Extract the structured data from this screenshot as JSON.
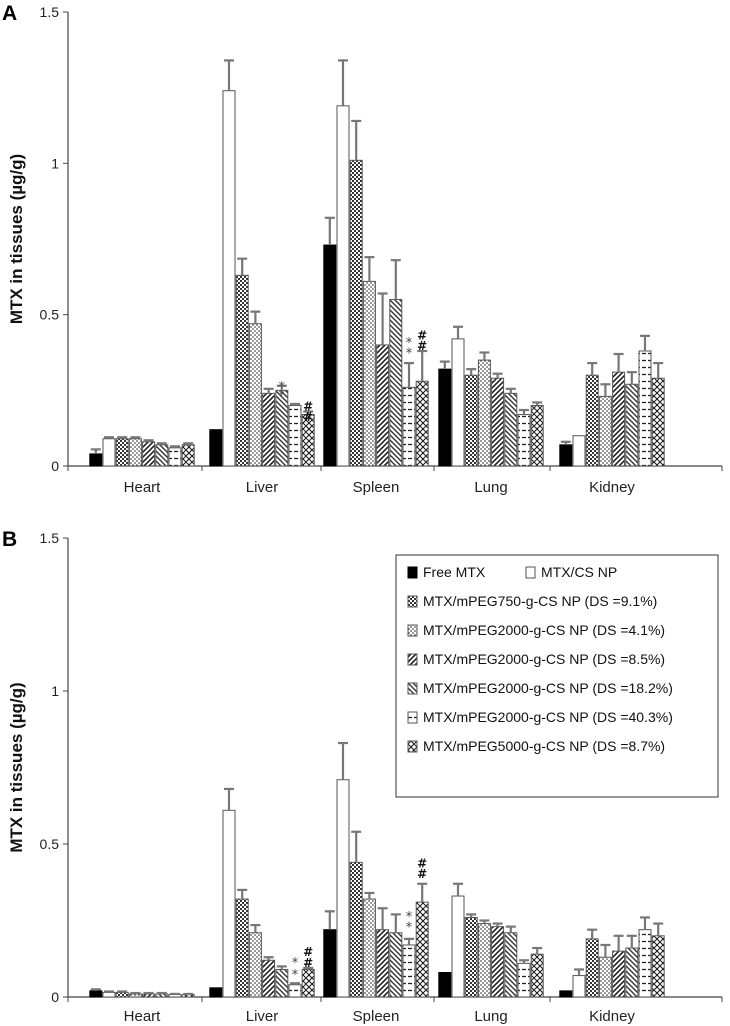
{
  "chart_data": [
    {
      "panel": "A",
      "type": "bar",
      "ylabel": "MTX in tissues (µg/g)",
      "ylim": [
        0,
        1.5
      ],
      "yticks": [
        "0",
        "0.5",
        "1",
        "1.5"
      ],
      "categories": [
        "Heart",
        "Liver",
        "Spleen",
        "Lung",
        "Kidney"
      ],
      "series": [
        {
          "name": "Free MTX",
          "values": [
            0.04,
            0.12,
            0.73,
            0.32,
            0.07
          ],
          "errors": [
            0.015,
            0.0,
            0.09,
            0.025,
            0.01
          ]
        },
        {
          "name": "MTX/CS NP",
          "values": [
            0.09,
            1.24,
            1.19,
            0.42,
            0.1
          ],
          "errors": [
            0.005,
            0.1,
            0.15,
            0.04,
            0.0
          ]
        },
        {
          "name": "MTX/mPEG750-g-CS NP (DS =9.1%)",
          "values": [
            0.09,
            0.63,
            1.01,
            0.3,
            0.3
          ],
          "errors": [
            0.005,
            0.055,
            0.13,
            0.02,
            0.04
          ]
        },
        {
          "name": "MTX/mPEG2000-g-CS NP (DS =4.1%)",
          "values": [
            0.09,
            0.47,
            0.61,
            0.35,
            0.23
          ],
          "errors": [
            0.005,
            0.04,
            0.08,
            0.025,
            0.04
          ]
        },
        {
          "name": "MTX/mPEG2000-g-CS NP (DS =8.5%)",
          "values": [
            0.08,
            0.24,
            0.4,
            0.29,
            0.31
          ],
          "errors": [
            0.005,
            0.015,
            0.17,
            0.015,
            0.06
          ]
        },
        {
          "name": "MTX/mPEG2000-g-CS NP (DS =18.2%)",
          "values": [
            0.07,
            0.25,
            0.55,
            0.24,
            0.27
          ],
          "errors": [
            0.005,
            0.015,
            0.13,
            0.015,
            0.04
          ]
        },
        {
          "name": "MTX/mPEG2000-g-CS NP (DS =40.3%)",
          "values": [
            0.06,
            0.2,
            0.26,
            0.17,
            0.38
          ],
          "errors": [
            0.005,
            0.005,
            0.08,
            0.015,
            0.05
          ]
        },
        {
          "name": "MTX/mPEG5000-g-CS NP (DS =8.7%)",
          "values": [
            0.07,
            0.17,
            0.28,
            0.2,
            0.29
          ],
          "errors": [
            0.005,
            0.01,
            0.1,
            0.01,
            0.05
          ]
        }
      ],
      "annotations": [
        {
          "text": "*",
          "category": 1,
          "series": 5,
          "y": 0.265
        },
        {
          "text": "*",
          "category": 1,
          "series": 5,
          "y": 0.235
        },
        {
          "text": "#",
          "category": 1,
          "series": 7,
          "y": 0.2
        },
        {
          "text": "#",
          "category": 1,
          "series": 7,
          "y": 0.165
        },
        {
          "text": "*",
          "category": 2,
          "series": 6,
          "y": 0.41
        },
        {
          "text": "*",
          "category": 2,
          "series": 6,
          "y": 0.375
        },
        {
          "text": "#",
          "category": 2,
          "series": 7,
          "y": 0.435
        },
        {
          "text": "#",
          "category": 2,
          "series": 7,
          "y": 0.4
        }
      ]
    },
    {
      "panel": "B",
      "type": "bar",
      "ylabel": "MTX in tissues (µg/g)",
      "ylim": [
        0,
        1.5
      ],
      "yticks": [
        "0",
        "0.5",
        "1",
        "1.5"
      ],
      "categories": [
        "Heart",
        "Liver",
        "Spleen",
        "Lung",
        "Kidney"
      ],
      "series": [
        {
          "name": "Free MTX",
          "values": [
            0.02,
            0.03,
            0.22,
            0.08,
            0.02
          ],
          "errors": [
            0.005,
            0.0,
            0.06,
            0.0,
            0.0
          ]
        },
        {
          "name": "MTX/CS NP",
          "values": [
            0.015,
            0.61,
            0.71,
            0.33,
            0.07
          ],
          "errors": [
            0.003,
            0.07,
            0.12,
            0.04,
            0.02
          ]
        },
        {
          "name": "MTX/mPEG750-g-CS NP (DS =9.1%)",
          "values": [
            0.015,
            0.32,
            0.44,
            0.26,
            0.19
          ],
          "errors": [
            0.003,
            0.03,
            0.1,
            0.01,
            0.03
          ]
        },
        {
          "name": "MTX/mPEG2000-g-CS NP (DS =4.1%)",
          "values": [
            0.01,
            0.21,
            0.32,
            0.24,
            0.13
          ],
          "errors": [
            0.003,
            0.025,
            0.02,
            0.01,
            0.04
          ]
        },
        {
          "name": "MTX/mPEG2000-g-CS NP (DS =8.5%)",
          "values": [
            0.01,
            0.12,
            0.22,
            0.23,
            0.15
          ],
          "errors": [
            0.003,
            0.01,
            0.07,
            0.01,
            0.05
          ]
        },
        {
          "name": "MTX/mPEG2000-g-CS NP (DS =18.2%)",
          "values": [
            0.01,
            0.09,
            0.21,
            0.21,
            0.16
          ],
          "errors": [
            0.003,
            0.01,
            0.06,
            0.02,
            0.04
          ]
        },
        {
          "name": "MTX/mPEG2000-g-CS NP (DS =40.3%)",
          "values": [
            0.008,
            0.04,
            0.17,
            0.11,
            0.22
          ],
          "errors": [
            0.002,
            0.005,
            0.02,
            0.01,
            0.04
          ]
        },
        {
          "name": "MTX/mPEG5000-g-CS NP (DS =8.7%)",
          "values": [
            0.008,
            0.09,
            0.31,
            0.14,
            0.2
          ],
          "errors": [
            0.002,
            0.005,
            0.06,
            0.02,
            0.04
          ]
        }
      ],
      "annotations": [
        {
          "text": "*",
          "category": 1,
          "series": 6,
          "y": 0.115
        },
        {
          "text": "*",
          "category": 1,
          "series": 6,
          "y": 0.075
        },
        {
          "text": "#",
          "category": 1,
          "series": 7,
          "y": 0.15
        },
        {
          "text": "#",
          "category": 1,
          "series": 7,
          "y": 0.115
        },
        {
          "text": "*",
          "category": 2,
          "series": 6,
          "y": 0.265
        },
        {
          "text": "*",
          "category": 2,
          "series": 6,
          "y": 0.23
        },
        {
          "text": "#",
          "category": 2,
          "series": 7,
          "y": 0.44
        },
        {
          "text": "#",
          "category": 2,
          "series": 7,
          "y": 0.405
        }
      ],
      "legend": {
        "position": "top-right",
        "entries": [
          "Free MTX",
          "MTX/CS NP",
          "MTX/mPEG750-g-CS NP (DS =9.1%)",
          "MTX/mPEG2000-g-CS NP (DS =4.1%)",
          "MTX/mPEG2000-g-CS NP (DS =8.5%)",
          "MTX/mPEG2000-g-CS NP (DS =18.2%)",
          "MTX/mPEG2000-g-CS NP (DS =40.3%)",
          "MTX/mPEG5000-g-CS NP (DS =8.7%)"
        ]
      }
    }
  ]
}
